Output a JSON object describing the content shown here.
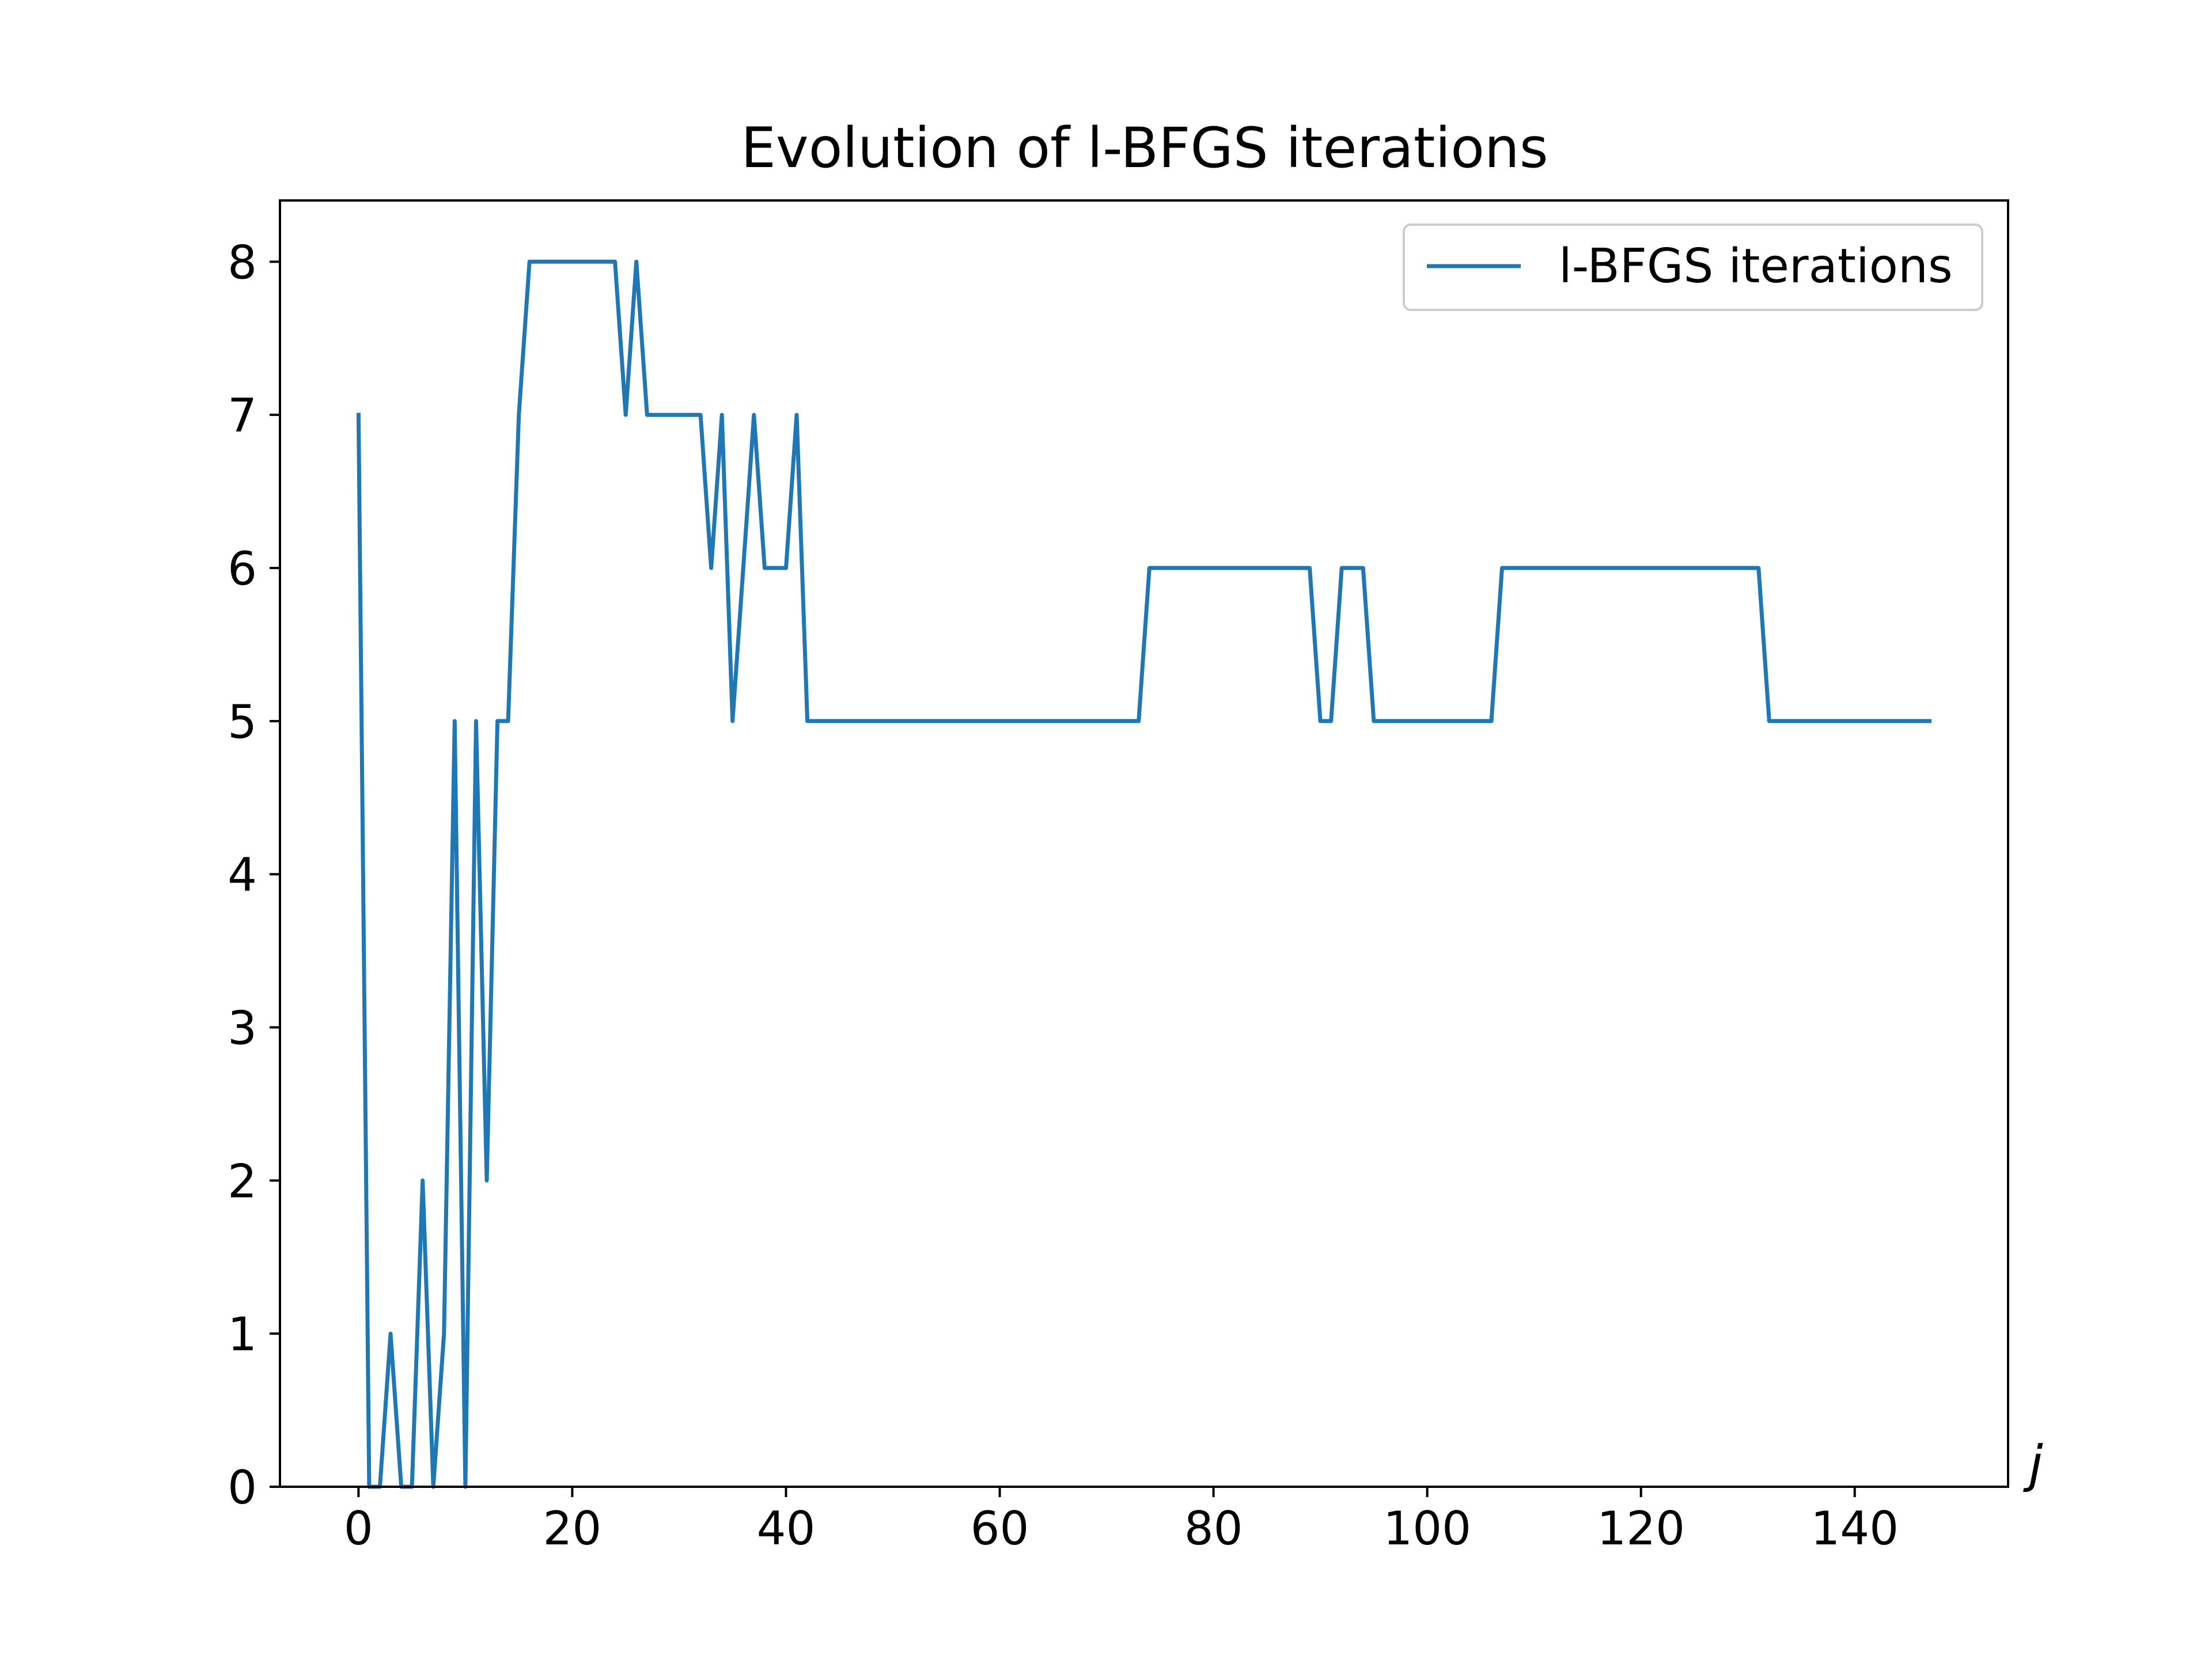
{
  "chart_data": {
    "type": "line",
    "title": "Evolution of l-BFGS iterations",
    "xlabel": "j",
    "ylabel": "",
    "xlim": [
      -7.35,
      154.35
    ],
    "ylim": [
      0,
      8.4
    ],
    "xticks": [
      0,
      20,
      40,
      60,
      80,
      100,
      120,
      140
    ],
    "yticks": [
      0,
      1,
      2,
      3,
      4,
      5,
      6,
      7,
      8
    ],
    "grid": false,
    "legend_position": "top-right",
    "colors": {
      "line": "#1f77b4",
      "legend_border": "#cccccc",
      "axes": "#000000"
    },
    "series": [
      {
        "name": "l-BFGS iterations",
        "x": [
          0,
          1,
          2,
          3,
          4,
          5,
          6,
          7,
          8,
          9,
          10,
          11,
          12,
          13,
          14,
          15,
          16,
          17,
          18,
          19,
          20,
          21,
          22,
          23,
          24,
          25,
          26,
          27,
          28,
          29,
          30,
          31,
          32,
          33,
          34,
          35,
          36,
          37,
          38,
          39,
          40,
          41,
          42,
          43,
          44,
          45,
          46,
          47,
          48,
          49,
          50,
          51,
          52,
          53,
          54,
          55,
          56,
          57,
          58,
          59,
          60,
          61,
          62,
          63,
          64,
          65,
          66,
          67,
          68,
          69,
          70,
          71,
          72,
          73,
          74,
          75,
          76,
          77,
          78,
          79,
          80,
          81,
          82,
          83,
          84,
          85,
          86,
          87,
          88,
          89,
          90,
          91,
          92,
          93,
          94,
          95,
          96,
          97,
          98,
          99,
          100,
          101,
          102,
          103,
          104,
          105,
          106,
          107,
          108,
          109,
          110,
          111,
          112,
          113,
          114,
          115,
          116,
          117,
          118,
          119,
          120,
          121,
          122,
          123,
          124,
          125,
          126,
          127,
          128,
          129,
          130,
          131,
          132,
          133,
          134,
          135,
          136,
          137,
          138,
          139,
          140,
          141,
          142,
          143,
          144,
          145,
          146,
          147
        ],
        "y": [
          7,
          0,
          0,
          1,
          0,
          0,
          2,
          0,
          1,
          5,
          0,
          5,
          2,
          5,
          5,
          7,
          8,
          8,
          8,
          8,
          8,
          8,
          8,
          8,
          8,
          7,
          8,
          7,
          7,
          7,
          7,
          7,
          7,
          6,
          7,
          5,
          6,
          7,
          6,
          6,
          6,
          7,
          5,
          5,
          5,
          5,
          5,
          5,
          5,
          5,
          5,
          5,
          5,
          5,
          5,
          5,
          5,
          5,
          5,
          5,
          5,
          5,
          5,
          5,
          5,
          5,
          5,
          5,
          5,
          5,
          5,
          5,
          5,
          5,
          6,
          6,
          6,
          6,
          6,
          6,
          6,
          6,
          6,
          6,
          6,
          6,
          6,
          6,
          6,
          6,
          5,
          5,
          6,
          6,
          6,
          5,
          5,
          5,
          5,
          5,
          5,
          5,
          5,
          5,
          5,
          5,
          5,
          6,
          6,
          6,
          6,
          6,
          6,
          6,
          6,
          6,
          6,
          6,
          6,
          6,
          6,
          6,
          6,
          6,
          6,
          6,
          6,
          6,
          6,
          6,
          6,
          6,
          5,
          5,
          5,
          5,
          5,
          5,
          5,
          5,
          5,
          5,
          5,
          5,
          5,
          5,
          5,
          5
        ]
      }
    ]
  }
}
